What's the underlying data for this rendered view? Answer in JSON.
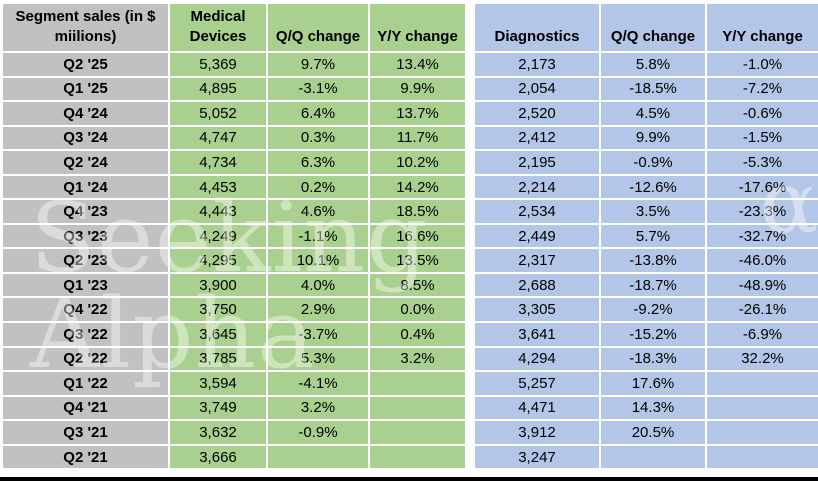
{
  "chart_data": {
    "type": "table",
    "title": "Segment sales (in $ miilions)",
    "columns": [
      "Segment sales (in $ miilions)",
      "Medical Devices",
      "Q/Q change",
      "Y/Y change",
      "Diagnostics",
      "Q/Q change",
      "Y/Y change"
    ],
    "column_groups": [
      {
        "name": "Medical Devices",
        "color": "#A9D08E"
      },
      {
        "name": "Diagnostics",
        "color": "#B4C6E7"
      }
    ],
    "rows": [
      [
        "Q2 '25",
        "5,369",
        "9.7%",
        "13.4%",
        "2,173",
        "5.8%",
        "-1.0%"
      ],
      [
        "Q1 '25",
        "4,895",
        "-3.1%",
        "9.9%",
        "2,054",
        "-18.5%",
        "-7.2%"
      ],
      [
        "Q4 '24",
        "5,052",
        "6.4%",
        "13.7%",
        "2,520",
        "4.5%",
        "-0.6%"
      ],
      [
        "Q3 '24",
        "4,747",
        "0.3%",
        "11.7%",
        "2,412",
        "9.9%",
        "-1.5%"
      ],
      [
        "Q2 '24",
        "4,734",
        "6.3%",
        "10.2%",
        "2,195",
        "-0.9%",
        "-5.3%"
      ],
      [
        "Q1 '24",
        "4,453",
        "0.2%",
        "14.2%",
        "2,214",
        "-12.6%",
        "-17.6%"
      ],
      [
        "Q4 '23",
        "4,443",
        "4.6%",
        "18.5%",
        "2,534",
        "3.5%",
        "-23.3%"
      ],
      [
        "Q3 '23",
        "4,249",
        "-1.1%",
        "16.6%",
        "2,449",
        "5.7%",
        "-32.7%"
      ],
      [
        "Q2 '23",
        "4,295",
        "10.1%",
        "13.5%",
        "2,317",
        "-13.8%",
        "-46.0%"
      ],
      [
        "Q1 '23",
        "3,900",
        "4.0%",
        "8.5%",
        "2,688",
        "-18.7%",
        "-48.9%"
      ],
      [
        "Q4 '22",
        "3,750",
        "2.9%",
        "0.0%",
        "3,305",
        "-9.2%",
        "-26.1%"
      ],
      [
        "Q3 '22",
        "3,645",
        "-3.7%",
        "0.4%",
        "3,641",
        "-15.2%",
        "-6.9%"
      ],
      [
        "Q2 '22",
        "3,785",
        "5.3%",
        "3.2%",
        "4,294",
        "-18.3%",
        "32.2%"
      ],
      [
        "Q1 '22",
        "3,594",
        "-4.1%",
        "",
        "5,257",
        "17.6%",
        ""
      ],
      [
        "Q4 '21",
        "3,749",
        "3.2%",
        "",
        "4,471",
        "14.3%",
        ""
      ],
      [
        "Q3 '21",
        "3,632",
        "-0.9%",
        "",
        "3,912",
        "20.5%",
        ""
      ],
      [
        "Q2 '21",
        "3,666",
        "",
        "",
        "3,247",
        "",
        ""
      ]
    ]
  },
  "watermark": {
    "text": "Seeking Alpha",
    "symbol": "α"
  },
  "colors": {
    "header_gray": "#C1C1C1",
    "medical_green": "#A9D08E",
    "diagnostics_blue": "#B4C6E7",
    "bottom_bar": "#000000"
  }
}
